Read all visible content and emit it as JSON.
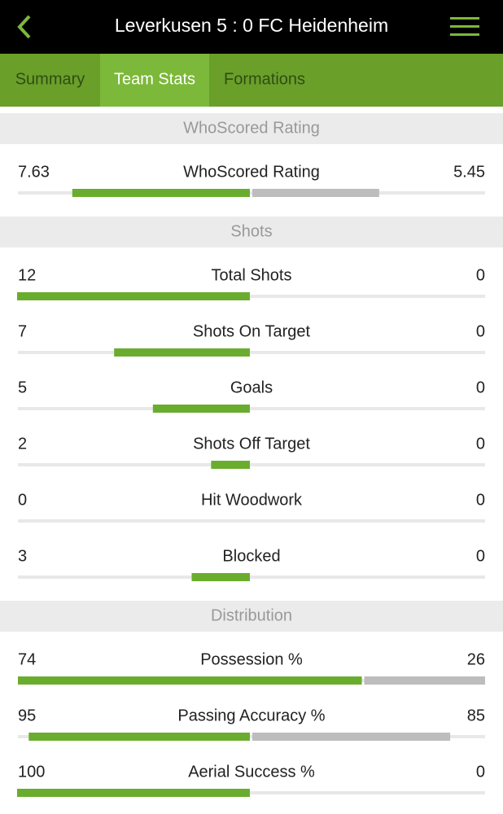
{
  "header": {
    "title": "Leverkusen 5 : 0 FC Heidenheim"
  },
  "tabs": [
    {
      "label": "Summary",
      "active": false
    },
    {
      "label": "Team Stats",
      "active": true
    },
    {
      "label": "Formations",
      "active": false
    }
  ],
  "sections": [
    {
      "title": "WhoScored Rating",
      "rows": [
        {
          "label": "WhoScored Rating",
          "home": 7.63,
          "away": 5.45
        }
      ]
    },
    {
      "title": "Shots",
      "rows": [
        {
          "label": "Total Shots",
          "home": 12,
          "away": 0
        },
        {
          "label": "Shots On Target",
          "home": 7,
          "away": 0
        },
        {
          "label": "Goals",
          "home": 5,
          "away": 0
        },
        {
          "label": "Shots Off Target",
          "home": 2,
          "away": 0
        },
        {
          "label": "Hit Woodwork",
          "home": 0,
          "away": 0
        },
        {
          "label": "Blocked",
          "home": 3,
          "away": 0
        }
      ]
    },
    {
      "title": "Distribution",
      "rows": [
        {
          "label": "Possession %",
          "home": 74,
          "away": 26
        },
        {
          "label": "Passing Accuracy %",
          "home": 95,
          "away": 85
        },
        {
          "label": "Aerial Success %",
          "home": 100,
          "away": 0
        }
      ]
    }
  ]
}
